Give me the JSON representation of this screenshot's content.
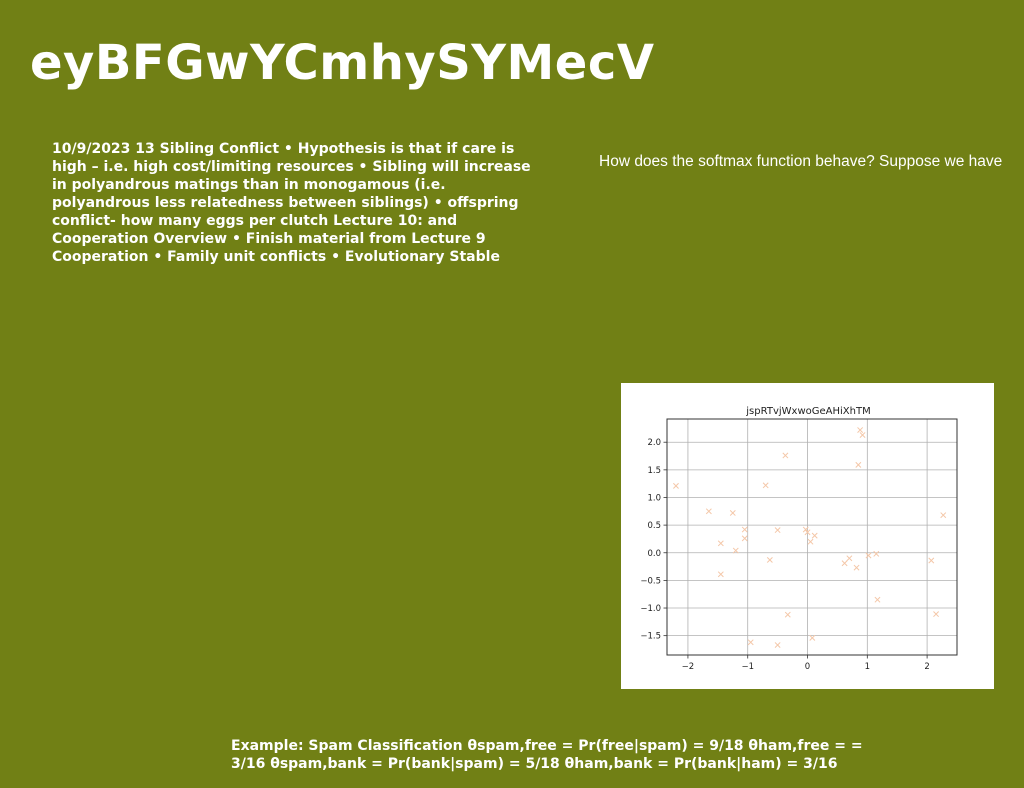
{
  "page": {
    "title": "eyBFGwYCmhySYMecV",
    "body_text": "10/9/2023 13 Sibling Conflict • Hypothesis is that if care is high – i.e. high cost/limiting resources • Sibling will increase in polyandrous matings than in monogamous (i.e. polyandrous less relatedness between siblings) • offspring conflict- how many eggs per clutch Lecture 10: and Cooperation Overview • Finish material from Lecture 9 Cooperation • Family unit conflicts • Evolutionary Stable",
    "question": "How does the softmax function behave? Suppose we have",
    "footer": "Example: Spam Classification θspam,free = Pr(free|spam) = 9/18 θham,free = = 3/16 θspam,bank = Pr(bank|spam) = 5/18 θham,bank = Pr(bank|ham) = 3/16"
  },
  "chart_data": {
    "type": "scatter",
    "title": "jspRTvjWxwoGeAHiXhTM",
    "xlabel": "",
    "ylabel": "",
    "xlim": [
      -2.35,
      2.5
    ],
    "ylim": [
      -1.85,
      2.42
    ],
    "xticks": [
      -2,
      -1,
      0,
      1,
      2
    ],
    "xtick_labels": [
      "−2",
      "−1",
      "0",
      "1",
      "2"
    ],
    "yticks": [
      2.0,
      1.5,
      1.0,
      0.5,
      0.0,
      -0.5,
      -1.0,
      -1.5
    ],
    "ytick_labels": [
      "2.0",
      "1.5",
      "1.0",
      "0.5",
      "0.0",
      "−0.5",
      "−1.0",
      "−1.5"
    ],
    "grid": true,
    "marker": "x",
    "marker_color": "#f4c7a8",
    "points": [
      {
        "x": -2.2,
        "y": 1.21
      },
      {
        "x": -1.65,
        "y": 0.75
      },
      {
        "x": -1.45,
        "y": 0.17
      },
      {
        "x": -1.45,
        "y": -0.39
      },
      {
        "x": -1.25,
        "y": 0.72
      },
      {
        "x": -1.2,
        "y": 0.04
      },
      {
        "x": -1.05,
        "y": 0.42
      },
      {
        "x": -1.05,
        "y": 0.26
      },
      {
        "x": -0.95,
        "y": -1.62
      },
      {
        "x": -0.7,
        "y": 1.22
      },
      {
        "x": -0.63,
        "y": -0.13
      },
      {
        "x": -0.5,
        "y": 0.41
      },
      {
        "x": -0.5,
        "y": -1.67
      },
      {
        "x": -0.37,
        "y": 1.76
      },
      {
        "x": -0.33,
        "y": -1.12
      },
      {
        "x": -0.03,
        "y": 0.42
      },
      {
        "x": 0.0,
        "y": 0.37
      },
      {
        "x": 0.05,
        "y": 0.2
      },
      {
        "x": 0.08,
        "y": -1.54
      },
      {
        "x": 0.12,
        "y": 0.31
      },
      {
        "x": 0.62,
        "y": -0.19
      },
      {
        "x": 0.7,
        "y": -0.1
      },
      {
        "x": 0.82,
        "y": -0.27
      },
      {
        "x": 0.85,
        "y": 1.59
      },
      {
        "x": 0.88,
        "y": 2.22
      },
      {
        "x": 0.92,
        "y": 2.13
      },
      {
        "x": 1.02,
        "y": -0.05
      },
      {
        "x": 1.15,
        "y": -0.02
      },
      {
        "x": 1.17,
        "y": -0.85
      },
      {
        "x": 2.07,
        "y": -0.14
      },
      {
        "x": 2.15,
        "y": -1.11
      },
      {
        "x": 2.27,
        "y": 0.68
      }
    ]
  }
}
